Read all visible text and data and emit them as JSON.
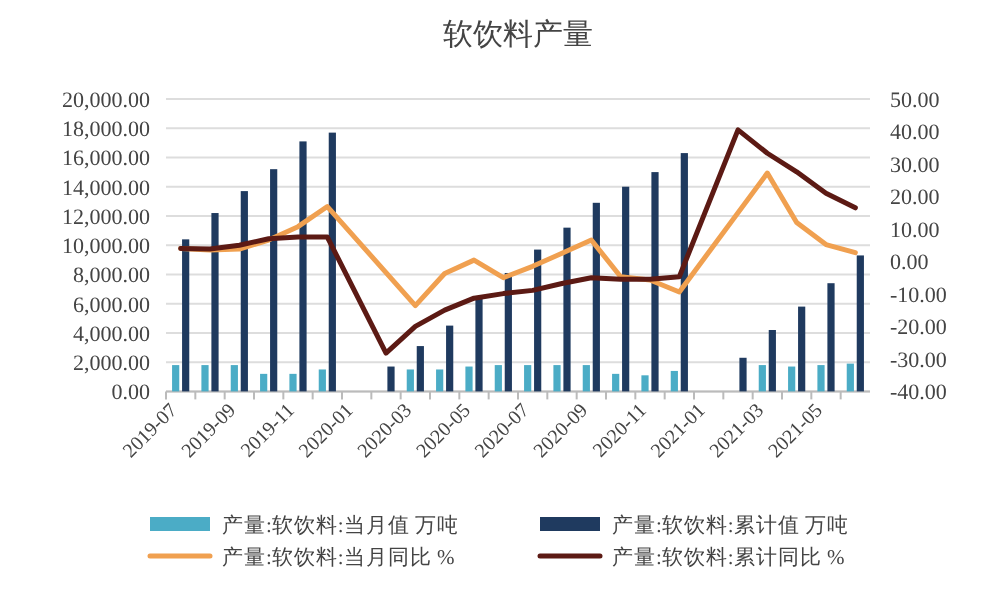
{
  "chart_data": {
    "type": "bar",
    "title": "软饮料产量",
    "categories": [
      "2019-07",
      null,
      "2019-09",
      null,
      "2019-11",
      null,
      "2020-01",
      null,
      "2020-03",
      null,
      "2020-05",
      null,
      "2020-07",
      null,
      "2020-09",
      null,
      "2020-11",
      null,
      "2021-01",
      null,
      "2021-03",
      null,
      "2021-05",
      null
    ],
    "series": [
      {
        "name": "产量:软饮料:当月值 万吨",
        "color": "#4bacc6",
        "values": [
          1800,
          1800,
          1800,
          1200,
          1200,
          1500,
          null,
          null,
          1500,
          1500,
          1700,
          1800,
          1800,
          1800,
          1800,
          1200,
          1100,
          1400,
          null,
          null,
          1800,
          1700,
          1800,
          1900
        ]
      },
      {
        "name": "产量:软饮料:累计值 万吨",
        "color": "#1f3a5f",
        "values": [
          10400,
          12200,
          13700,
          15200,
          17100,
          17700,
          null,
          1700,
          3100,
          4500,
          6400,
          8100,
          9700,
          11200,
          12900,
          14000,
          15000,
          16300,
          null,
          2300,
          4200,
          5800,
          7400,
          9300
        ]
      },
      {
        "name": "产量:软饮料:当月同比 %",
        "type": "line",
        "axis": "y2",
        "color": "#f0a050",
        "values": [
          4,
          3.5,
          3.8,
          6.6,
          10.7,
          16.9,
          null,
          null,
          -13.6,
          -3.7,
          0.4,
          -5,
          -1.5,
          2.5,
          6.6,
          -4.7,
          -5.7,
          -9.4,
          null,
          null,
          27.2,
          12,
          5.2,
          2.7
        ]
      },
      {
        "name": "产量:软饮料:累计同比 %",
        "type": "line",
        "axis": "y2",
        "color": "#5c1a14",
        "values": [
          4,
          3.8,
          5,
          7,
          7.5,
          7.5,
          null,
          -28.2,
          -20,
          -15,
          -11.3,
          -9.9,
          -8.9,
          -6.8,
          -5,
          -5.5,
          -5.5,
          -4.7,
          null,
          40.5,
          33.3,
          27.6,
          21,
          16.5
        ]
      }
    ],
    "ylim": [
      0,
      20000
    ],
    "yticks": [
      {
        "value": 0,
        "label": "0.00"
      },
      {
        "value": 2000,
        "label": "2,000.00"
      },
      {
        "value": 4000,
        "label": "4,000.00"
      },
      {
        "value": 6000,
        "label": "6,000.00"
      },
      {
        "value": 8000,
        "label": "8,000.00"
      },
      {
        "value": 10000,
        "label": "10,000.00"
      },
      {
        "value": 12000,
        "label": "12,000.00"
      },
      {
        "value": 14000,
        "label": "14,000.00"
      },
      {
        "value": 16000,
        "label": "16,000.00"
      },
      {
        "value": 18000,
        "label": "18,000.00"
      },
      {
        "value": 20000,
        "label": "20,000.00"
      }
    ],
    "y2lim": [
      -40,
      50
    ],
    "y2ticks": [
      {
        "value": -40,
        "label": "-40.00"
      },
      {
        "value": -30,
        "label": "-30.00"
      },
      {
        "value": -20,
        "label": "-20.00"
      },
      {
        "value": -10,
        "label": "-10.00"
      },
      {
        "value": 0,
        "label": "0.00"
      },
      {
        "value": 10,
        "label": "10.00"
      },
      {
        "value": 20,
        "label": "20.00"
      },
      {
        "value": 30,
        "label": "30.00"
      },
      {
        "value": 40,
        "label": "40.00"
      },
      {
        "value": 50,
        "label": "50.00"
      }
    ],
    "grid": "y",
    "legend": "bottom"
  }
}
